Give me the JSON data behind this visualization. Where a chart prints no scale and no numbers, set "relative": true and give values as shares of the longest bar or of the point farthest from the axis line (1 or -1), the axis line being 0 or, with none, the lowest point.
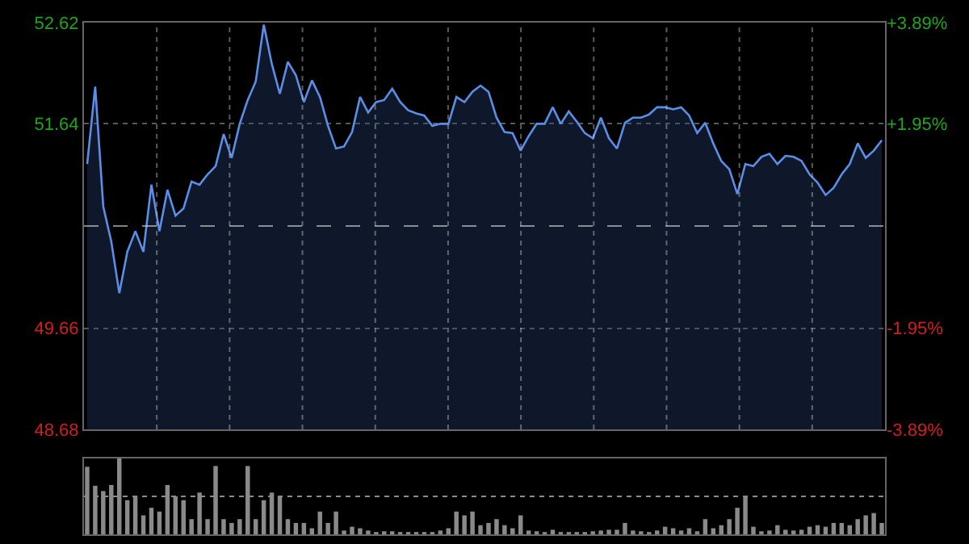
{
  "chart_data": [
    {
      "type": "area",
      "categories": [
        null,
        null,
        null,
        null,
        null,
        null,
        null,
        null,
        null,
        null,
        null,
        null,
        null,
        null,
        null,
        null,
        null,
        null,
        null,
        null,
        null,
        null,
        null,
        null,
        null,
        null,
        null,
        null,
        null,
        null,
        null,
        null,
        null,
        null,
        null,
        null,
        null,
        null,
        null,
        null,
        null,
        null,
        null,
        null,
        null,
        null,
        null,
        null,
        null,
        null,
        null,
        null,
        null,
        null,
        null,
        null,
        null,
        null,
        null,
        null,
        null,
        null,
        null,
        null,
        null,
        null,
        null,
        null,
        null,
        null,
        null,
        null,
        null,
        null,
        null,
        null,
        null,
        null,
        null,
        null,
        null,
        null,
        null,
        null,
        null,
        null,
        null,
        null,
        null,
        null,
        null,
        null,
        null,
        null,
        null,
        null,
        null,
        null,
        null,
        null
      ],
      "values": [
        51.25,
        52.0,
        50.84,
        50.5,
        50.0,
        50.4,
        50.6,
        50.4,
        51.05,
        50.6,
        51.0,
        50.75,
        50.82,
        51.08,
        51.05,
        51.15,
        51.23,
        51.54,
        51.31,
        51.64,
        51.87,
        52.05,
        52.6,
        52.22,
        51.93,
        52.24,
        52.11,
        51.85,
        52.06,
        51.9,
        51.62,
        51.4,
        51.42,
        51.56,
        51.9,
        51.75,
        51.85,
        51.87,
        51.98,
        51.85,
        51.77,
        51.74,
        51.72,
        51.62,
        51.64,
        51.64,
        51.9,
        51.85,
        51.95,
        52.01,
        51.95,
        51.7,
        51.56,
        51.55,
        51.38,
        51.52,
        51.64,
        51.64,
        51.8,
        51.64,
        51.76,
        51.66,
        51.55,
        51.5,
        51.7,
        51.5,
        51.4,
        51.65,
        51.7,
        51.7,
        51.73,
        51.8,
        51.8,
        51.78,
        51.8,
        51.72,
        51.55,
        51.65,
        51.45,
        51.28,
        51.2,
        50.96,
        51.25,
        51.23,
        51.32,
        51.35,
        51.25,
        51.33,
        51.32,
        51.28,
        51.15,
        51.07,
        50.95,
        51.02,
        51.15,
        51.25,
        51.45,
        51.31,
        51.38,
        51.48
      ],
      "color": "#5b8ee6",
      "ylim": [
        48.68,
        52.62
      ],
      "yticks": [
        52.62,
        51.64,
        49.66,
        48.68
      ],
      "y2lim": [
        -3.89,
        3.89
      ],
      "y2ticks": [
        {
          "value": 3.89,
          "label": "+3.89%"
        },
        {
          "value": 1.95,
          "label": "+1.95%"
        },
        {
          "value": -1.95,
          "label": "-1.95%"
        },
        {
          "value": -3.89,
          "label": "-3.89%"
        }
      ],
      "ref_lines": [
        {
          "axis": "y",
          "value": 50.65,
          "line_style": "dashed"
        }
      ],
      "grid": true
    },
    {
      "type": "bar",
      "relative": true,
      "categories": [
        null,
        null,
        null,
        null,
        null,
        null,
        null,
        null,
        null,
        null,
        null,
        null,
        null,
        null,
        null,
        null,
        null,
        null,
        null,
        null,
        null,
        null,
        null,
        null,
        null,
        null,
        null,
        null,
        null,
        null,
        null,
        null,
        null,
        null,
        null,
        null,
        null,
        null,
        null,
        null,
        null,
        null,
        null,
        null,
        null,
        null,
        null,
        null,
        null,
        null,
        null,
        null,
        null,
        null,
        null,
        null,
        null,
        null,
        null,
        null,
        null,
        null,
        null,
        null,
        null,
        null,
        null,
        null,
        null,
        null,
        null,
        null,
        null,
        null,
        null,
        null,
        null,
        null,
        null,
        null,
        null,
        null,
        null,
        null,
        null,
        null,
        null,
        null,
        null,
        null,
        null,
        null,
        null,
        null,
        null,
        null,
        null,
        null,
        null,
        null
      ],
      "values": [
        0.89,
        0.64,
        0.57,
        0.65,
        1.0,
        0.45,
        0.5,
        0.25,
        0.35,
        0.3,
        0.65,
        0.5,
        0.45,
        0.2,
        0.55,
        0.2,
        0.9,
        0.2,
        0.15,
        0.2,
        0.9,
        0.2,
        0.45,
        0.55,
        0.5,
        0.2,
        0.15,
        0.15,
        0.08,
        0.3,
        0.15,
        0.3,
        0.05,
        0.1,
        0.08,
        0.05,
        0.03,
        0.04,
        0.04,
        0.03,
        0.03,
        0.03,
        0.03,
        0.03,
        0.05,
        0.08,
        0.3,
        0.25,
        0.3,
        0.12,
        0.15,
        0.2,
        0.12,
        0.08,
        0.25,
        0.05,
        0.04,
        0.03,
        0.06,
        0.03,
        0.03,
        0.03,
        0.03,
        0.04,
        0.05,
        0.06,
        0.06,
        0.15,
        0.05,
        0.04,
        0.03,
        0.05,
        0.1,
        0.08,
        0.05,
        0.08,
        0.04,
        0.2,
        0.08,
        0.12,
        0.2,
        0.35,
        0.5,
        0.1,
        0.04,
        0.05,
        0.12,
        0.06,
        0.05,
        0.06,
        0.1,
        0.12,
        0.1,
        0.15,
        0.15,
        0.12,
        0.2,
        0.25,
        0.28,
        0.15
      ],
      "color": "#8a8a8a",
      "ref_lines": [
        {
          "axis": "y",
          "value": 0.5,
          "line_style": "dotted",
          "color": "#8c8c8c"
        }
      ]
    }
  ]
}
